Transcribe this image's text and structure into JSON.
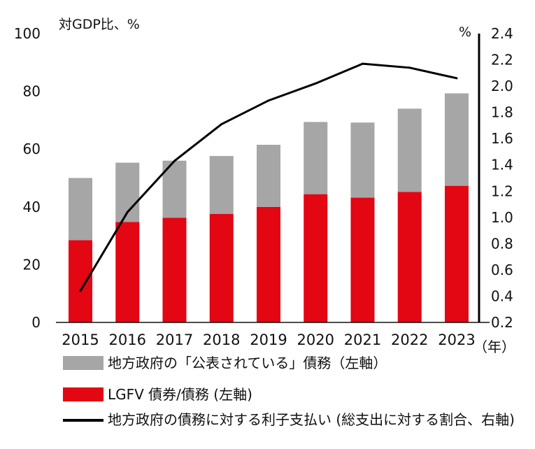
{
  "chart_data": {
    "type": "bar",
    "left_axis_unit": "対GDP比、%",
    "right_axis_unit": "%",
    "year_suffix": "（年）",
    "categories": [
      "2015",
      "2016",
      "2017",
      "2018",
      "2019",
      "2020",
      "2021",
      "2022",
      "2023"
    ],
    "left_ylim": [
      0,
      100
    ],
    "left_ticks": [
      "0",
      "20",
      "40",
      "60",
      "80",
      "100"
    ],
    "right_ylim": [
      0.2,
      2.4
    ],
    "right_ticks": [
      "0.2",
      "0.4",
      "0.6",
      "0.8",
      "1.0",
      "1.2",
      "1.4",
      "1.6",
      "1.8",
      "2.0",
      "2.2",
      "2.4"
    ],
    "series": [
      {
        "name": "LGFV 債券/債務 (左軸)",
        "kind": "bar",
        "axis": "left",
        "color": "#e30613",
        "values": [
          28.5,
          34.8,
          36.2,
          37.6,
          40.0,
          44.4,
          43.2,
          45.2,
          47.3
        ]
      },
      {
        "name": "地方政府の「公表されている」債務（左軸）",
        "kind": "bar",
        "axis": "left",
        "color": "#a6a6a6",
        "values": [
          21.5,
          20.5,
          19.8,
          20.0,
          21.5,
          25.0,
          26.0,
          28.8,
          32.0
        ]
      },
      {
        "name": "地方政府の債務に対する利子支払い (総支出に対する割合、右軸)",
        "kind": "line",
        "axis": "right",
        "color": "#000000",
        "values": [
          0.44,
          1.04,
          1.43,
          1.71,
          1.89,
          2.02,
          2.17,
          2.14,
          2.06
        ]
      }
    ],
    "legend": [
      {
        "label": "地方政府の「公表されている」債務（左軸）",
        "kind": "bar",
        "color": "#a6a6a6"
      },
      {
        "label": "LGFV 債券/債務 (左軸)",
        "kind": "bar",
        "color": "#e30613"
      },
      {
        "label": "地方政府の債務に対する利子支払い (総支出に対する割合、右軸)",
        "kind": "line",
        "color": "#000000"
      }
    ]
  }
}
